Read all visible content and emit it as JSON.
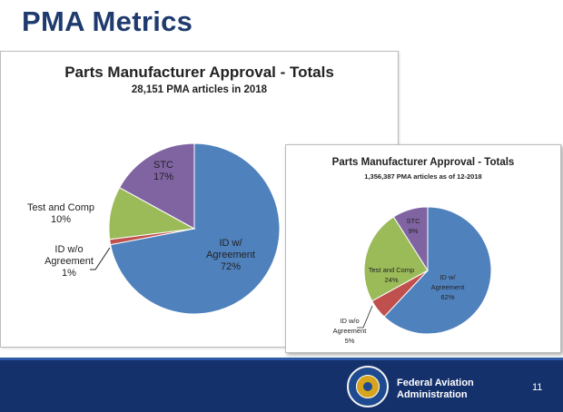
{
  "slide": {
    "title": "PMA Metrics"
  },
  "footer": {
    "agency_line1": "Federal Aviation",
    "agency_line2": "Administration",
    "page_number": "11",
    "seal_text": "FEDERAL AVIATION ADMINISTRATION"
  },
  "colors": {
    "blue": "#4f81bd",
    "red": "#c0504d",
    "green": "#9bbb59",
    "purple": "#8064a2",
    "footer": "#14316b"
  },
  "chart_data": [
    {
      "type": "pie",
      "title": "Parts Manufacturer Approval - Totals",
      "subtitle": "28,151 PMA articles in 2018",
      "slices": [
        {
          "label": "ID w/ Agreement",
          "line1": "ID w/",
          "line2": "Agreement",
          "pct_text": "72%",
          "value": 72,
          "color": "#4f81bd"
        },
        {
          "label": "ID w/o Agreement",
          "line1": "ID w/o",
          "line2": "Agreement",
          "pct_text": "1%",
          "value": 1,
          "color": "#c0504d"
        },
        {
          "label": "Test and Comp",
          "line1": "Test and Comp",
          "line2": "",
          "pct_text": "10%",
          "value": 10,
          "color": "#9bbb59"
        },
        {
          "label": "STC",
          "line1": "STC",
          "line2": "",
          "pct_text": "17%",
          "value": 17,
          "color": "#8064a2"
        }
      ]
    },
    {
      "type": "pie",
      "title": "Parts Manufacturer Approval - Totals",
      "subtitle": "1,356,387 PMA articles as of 12-2018",
      "slices": [
        {
          "label": "ID w/ Agreement",
          "line1": "ID w/",
          "line2": "Agreement",
          "pct_text": "62%",
          "value": 62,
          "color": "#4f81bd"
        },
        {
          "label": "ID w/o Agreement",
          "line1": "ID w/o",
          "line2": "Agreement",
          "pct_text": "5%",
          "value": 5,
          "color": "#c0504d"
        },
        {
          "label": "Test and Comp",
          "line1": "Test and Comp",
          "line2": "",
          "pct_text": "24%",
          "value": 24,
          "color": "#9bbb59"
        },
        {
          "label": "STC",
          "line1": "STC",
          "line2": "",
          "pct_text": "9%",
          "value": 9,
          "color": "#8064a2"
        }
      ]
    }
  ]
}
